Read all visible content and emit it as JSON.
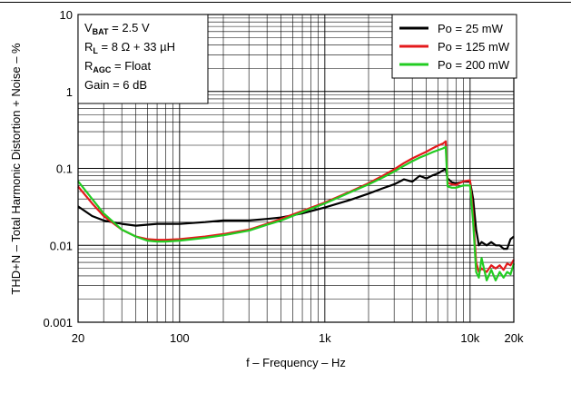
{
  "chart_data": {
    "type": "line",
    "title": "",
    "xlabel": "f – Frequency – Hz",
    "ylabel": "THD+N – Total Harmonic Distortion + Noise – %",
    "x_scale": "log",
    "y_scale": "log",
    "xlim": [
      20,
      20000
    ],
    "ylim": [
      0.001,
      10
    ],
    "grid": true,
    "legend_position": "top-right",
    "x_ticks": [
      {
        "value": 20,
        "label": "20"
      },
      {
        "value": 100,
        "label": "100"
      },
      {
        "value": 1000,
        "label": "1k"
      },
      {
        "value": 10000,
        "label": "10k"
      },
      {
        "value": 20000,
        "label": "20k"
      }
    ],
    "y_ticks": [
      {
        "value": 0.001,
        "label": "0.001"
      },
      {
        "value": 0.01,
        "label": "0.01"
      },
      {
        "value": 0.1,
        "label": "0.1"
      },
      {
        "value": 1,
        "label": "1"
      },
      {
        "value": 10,
        "label": "10"
      }
    ],
    "annotation": {
      "lines": [
        {
          "main": "V",
          "sub": "BAT",
          "rest": " = 2.5 V"
        },
        {
          "main": "R",
          "sub": "L",
          "rest": " = 8 Ω + 33 µH"
        },
        {
          "main": "R",
          "sub": "AGC",
          "rest": " = Float"
        },
        {
          "main": "Gain = 6 dB",
          "sub": "",
          "rest": ""
        }
      ]
    },
    "series": [
      {
        "name": "Po = 25 mW",
        "color": "#000000",
        "x": [
          20,
          25,
          30,
          40,
          50,
          70,
          100,
          150,
          200,
          300,
          400,
          500,
          700,
          1000,
          1500,
          2000,
          2500,
          3000,
          3500,
          4000,
          4500,
          5000,
          5500,
          6000,
          6500,
          6800,
          7000,
          7500,
          8000,
          9000,
          10000,
          10500,
          11000,
          11500,
          12000,
          13000,
          14000,
          15000,
          16000,
          17000,
          18000,
          19000,
          20000
        ],
        "y": [
          0.032,
          0.024,
          0.021,
          0.019,
          0.018,
          0.019,
          0.019,
          0.02,
          0.021,
          0.021,
          0.022,
          0.023,
          0.026,
          0.031,
          0.039,
          0.047,
          0.055,
          0.062,
          0.072,
          0.067,
          0.08,
          0.074,
          0.081,
          0.086,
          0.094,
          0.098,
          0.074,
          0.066,
          0.064,
          0.067,
          0.067,
          0.04,
          0.016,
          0.01,
          0.011,
          0.01,
          0.011,
          0.01,
          0.01,
          0.009,
          0.009,
          0.012,
          0.013
        ]
      },
      {
        "name": "Po = 125 mW",
        "color": "#e41a1c",
        "x": [
          20,
          25,
          30,
          40,
          50,
          60,
          70,
          80,
          100,
          150,
          200,
          300,
          400,
          500,
          700,
          1000,
          1500,
          2000,
          2500,
          3000,
          3500,
          4000,
          4500,
          5000,
          5500,
          6000,
          6500,
          6800,
          7000,
          7500,
          8000,
          9000,
          10000,
          10500,
          11000,
          11500,
          12000,
          13000,
          14000,
          15000,
          16000,
          17000,
          18000,
          19000,
          20000
        ],
        "y": [
          0.058,
          0.035,
          0.024,
          0.016,
          0.013,
          0.012,
          0.0118,
          0.0118,
          0.012,
          0.013,
          0.014,
          0.016,
          0.019,
          0.022,
          0.028,
          0.036,
          0.05,
          0.064,
          0.08,
          0.097,
          0.117,
          0.135,
          0.15,
          0.165,
          0.182,
          0.197,
          0.21,
          0.225,
          0.065,
          0.062,
          0.061,
          0.068,
          0.07,
          0.025,
          0.006,
          0.0045,
          0.005,
          0.0045,
          0.0055,
          0.005,
          0.0055,
          0.0048,
          0.0058,
          0.0055,
          0.0065
        ]
      },
      {
        "name": "Po = 200 mW",
        "color": "#22cc22",
        "x": [
          20,
          25,
          30,
          40,
          50,
          60,
          70,
          80,
          100,
          150,
          200,
          300,
          400,
          500,
          700,
          1000,
          1500,
          2000,
          2500,
          3000,
          3500,
          4000,
          4500,
          5000,
          5500,
          6000,
          6500,
          6800,
          7000,
          7500,
          8000,
          9000,
          10000,
          10500,
          11000,
          11500,
          12000,
          13000,
          14000,
          15000,
          16000,
          17000,
          18000,
          19000,
          20000
        ],
        "y": [
          0.068,
          0.04,
          0.026,
          0.016,
          0.013,
          0.0115,
          0.0112,
          0.0112,
          0.0115,
          0.0125,
          0.0135,
          0.0155,
          0.0185,
          0.021,
          0.027,
          0.035,
          0.049,
          0.062,
          0.076,
          0.091,
          0.108,
          0.124,
          0.138,
          0.15,
          0.162,
          0.172,
          0.182,
          0.19,
          0.058,
          0.056,
          0.056,
          0.06,
          0.06,
          0.02,
          0.0045,
          0.0038,
          0.0068,
          0.0035,
          0.0048,
          0.0035,
          0.0045,
          0.0038,
          0.0045,
          0.0042,
          0.0058
        ]
      }
    ]
  }
}
